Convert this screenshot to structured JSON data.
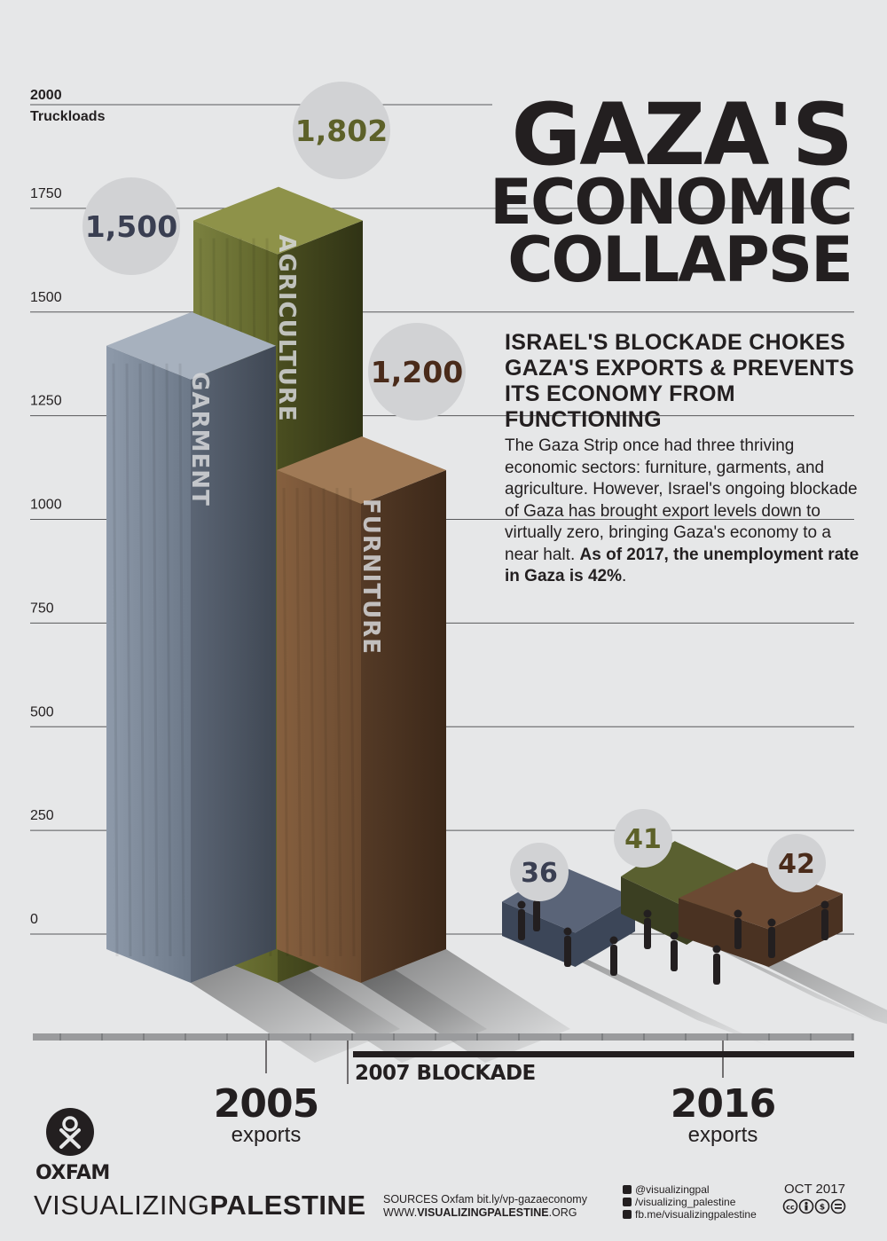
{
  "title": {
    "line1": "GAZA'S",
    "line2": "ECONOMIC",
    "line3": "COLLAPSE"
  },
  "subtitle": "ISRAEL'S BLOCKADE CHOKES GAZA'S EXPORTS & PREVENTS ITS ECONOMY FROM FUNCTIONING",
  "body": {
    "text": "The Gaza Strip once had three thriving economic sectors: furniture, garments, and agriculture. However, Israel's ongoing blockade of Gaza has brought export levels down to virtually zero, bringing Gaza's economy to a near halt.",
    "bold": "As of 2017, the unemployment rate in Gaza is 42%",
    "end": "."
  },
  "axis": {
    "top_label": "2000",
    "unit": "Truckloads"
  },
  "chart_data": {
    "type": "bar",
    "ylabel": "Truckloads",
    "ylim": [
      0,
      2000
    ],
    "yticks": [
      0,
      250,
      500,
      750,
      1000,
      1250,
      1500,
      1750,
      2000
    ],
    "x_groups": [
      "2005",
      "2016"
    ],
    "series": [
      {
        "name": "GARMENT",
        "color": "#7a8797",
        "values": [
          1500,
          36
        ],
        "labels": [
          "1,500",
          "36"
        ],
        "label_color": "#3a3f52"
      },
      {
        "name": "AGRICULTURE",
        "color": "#6b7034",
        "values": [
          1802,
          41
        ],
        "labels": [
          "1,802",
          "41"
        ],
        "label_color": "#5d6129"
      },
      {
        "name": "FURNITURE",
        "color": "#6f4e36",
        "values": [
          1200,
          42
        ],
        "labels": [
          "1,200",
          "42"
        ],
        "label_color": "#4a2b1a"
      }
    ]
  },
  "timeline": {
    "blockade_label": "2007 BLOCKADE",
    "markers": [
      {
        "year": "2005",
        "caption": "exports"
      },
      {
        "year": "2016",
        "caption": "exports"
      }
    ]
  },
  "footer": {
    "org": "OXFAM",
    "brand_light": "VISUALIZING",
    "brand_bold": "PALESTINE",
    "sources_line1": "SOURCES Oxfam bit.ly/vp-gazaeconomy",
    "sources_prefix": "WWW.",
    "sources_bold": "VISUALIZINGPALESTINE",
    "sources_suffix": ".ORG",
    "social": [
      "@visualizingpal",
      "/visualizing_palestine",
      "fb.me/visualizingpalestine"
    ],
    "date": "OCT 2017"
  },
  "colors": {
    "background": "#e6e7e8",
    "ink": "#231f20",
    "grid": "#58595b",
    "bubble": "#d1d2d4"
  }
}
